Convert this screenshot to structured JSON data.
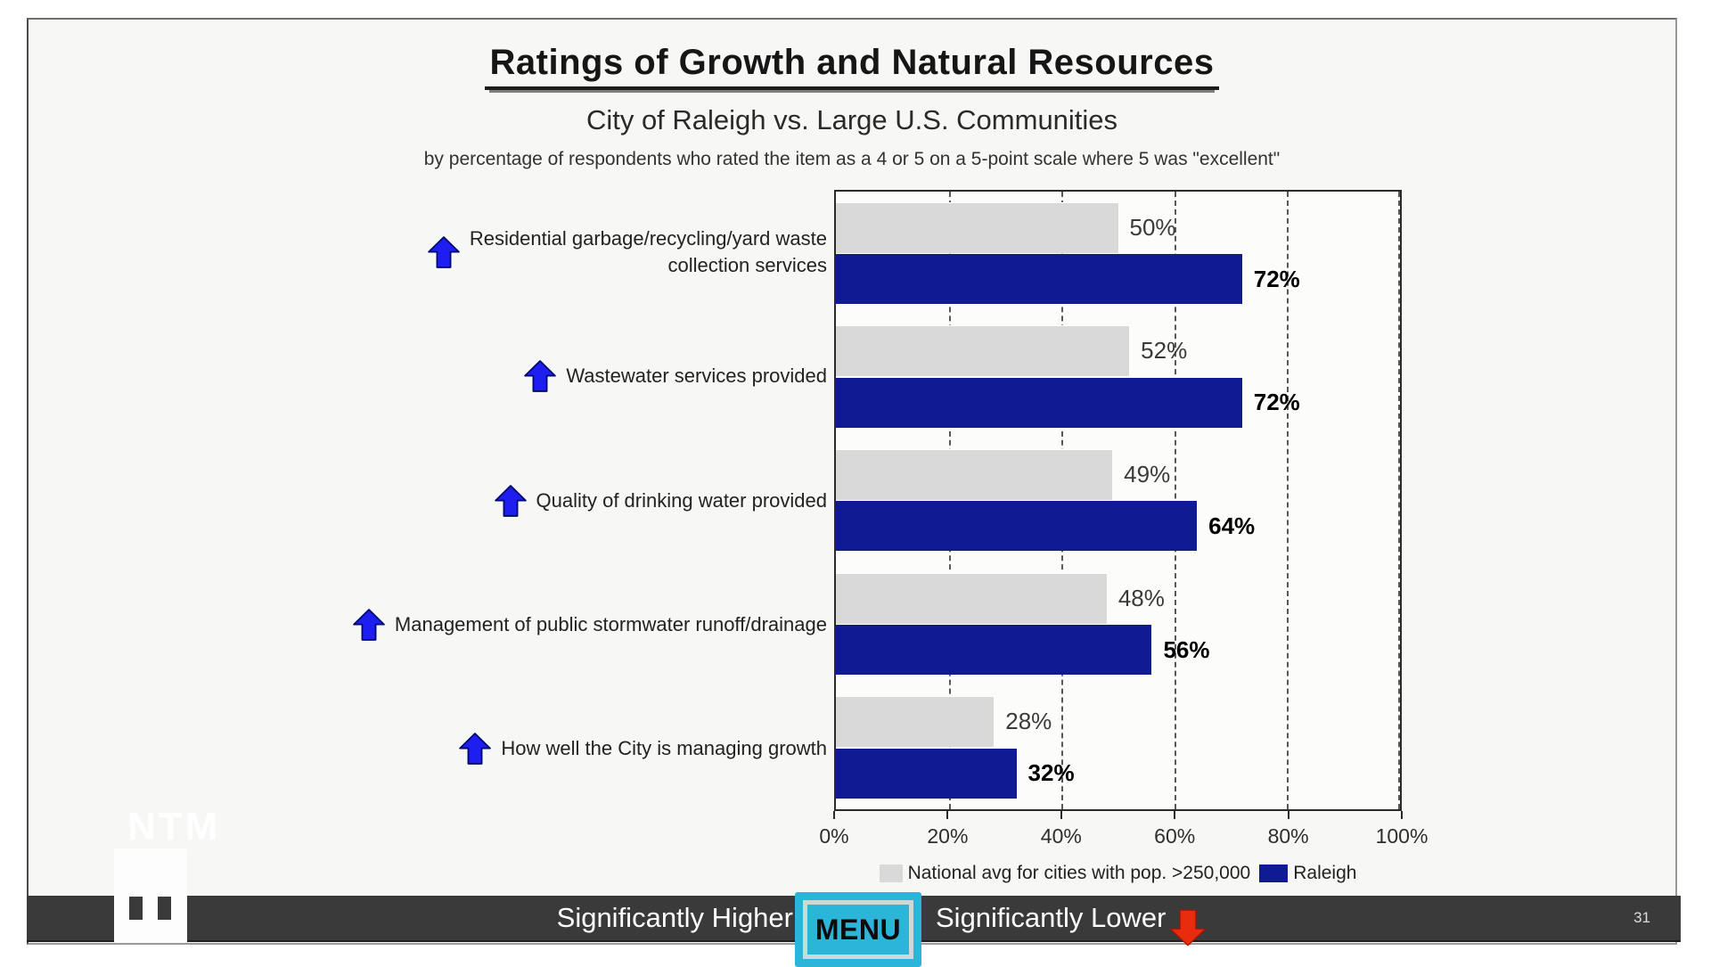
{
  "chart_data": {
    "type": "bar",
    "orientation": "horizontal",
    "title": "Ratings of Growth and Natural Resources",
    "subtitle": "City of Raleigh vs. Large U.S. Communities",
    "note": "by percentage of respondents who rated the item as a 4 or 5 on a 5-point scale where 5 was \"excellent\"",
    "xlim": [
      0,
      100
    ],
    "x_ticks": [
      "0%",
      "20%",
      "40%",
      "60%",
      "80%",
      "100%"
    ],
    "grid": "dashed vertical gridlines every 20%",
    "legend_position": "bottom center",
    "categories": [
      "Residential garbage/recycling/yard waste\ncollection services",
      "Wastewater services provided",
      "Quality of drinking water provided",
      "Management of public stormwater runoff/drainage",
      "How well the City is managing growth"
    ],
    "significance": [
      "higher",
      "higher",
      "higher",
      "higher",
      "higher"
    ],
    "series": [
      {
        "name": "National avg for cities with pop. >250,000",
        "color": "#d9d9d9",
        "values": [
          50,
          52,
          49,
          48,
          28
        ]
      },
      {
        "name": "Raleigh",
        "color": "#101b93",
        "values": [
          72,
          72,
          64,
          56,
          32
        ]
      }
    ]
  },
  "footer": {
    "significantly_higher": "Significantly Higher",
    "menu": "MENU",
    "significantly_lower": "Significantly Lower"
  },
  "page": {
    "page_number": "31"
  },
  "watermark": {
    "text": "NTM"
  },
  "icons": {
    "up_arrow": "significantly-higher-arrow-icon",
    "down_arrow": "significantly-lower-arrow-icon"
  },
  "colors": {
    "national_bar": "#d9d9d9",
    "raleigh_bar": "#101b93",
    "up_arrow_blue": "#1e1ef0",
    "down_arrow_red": "#e92b0e",
    "menu_cyan": "#2bb5d8",
    "footer_bar": "#3a3a3a"
  }
}
